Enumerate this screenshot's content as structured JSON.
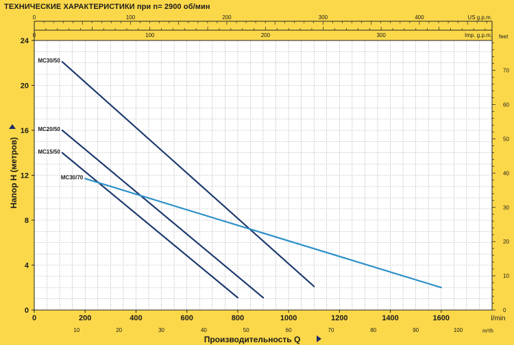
{
  "title": "ТЕХНИЧЕСКИЕ ХАРАКТЕРИСТИКИ при n= 2900 об/мин",
  "colors": {
    "background": "#fbd84a",
    "plot_background": "#ffffff",
    "grid": "#9a9a9a",
    "axis_text": "#1a1a1a",
    "arrow": "#1f2a6b"
  },
  "chart_data": {
    "type": "line",
    "title": "ТЕХНИЧЕСКИЕ ХАРАКТЕРИСТИКИ при n= 2900 об/мин",
    "xlabel": "Производительность Q",
    "ylabel": "Напор H  (метров)",
    "x_unit": "l/min",
    "xlim": [
      0,
      1800
    ],
    "ylim": [
      0,
      24
    ],
    "grid": true,
    "x_ticks": [
      0,
      200,
      400,
      600,
      800,
      1000,
      1200,
      1400,
      1600
    ],
    "y_ticks": [
      0,
      4,
      8,
      12,
      16,
      20,
      24
    ],
    "secondary_axes": {
      "m3h": {
        "unit": "m³/h",
        "factor": 16.6667,
        "ticks": [
          10,
          20,
          30,
          40,
          50,
          60,
          70,
          80,
          90,
          100
        ]
      },
      "us_gpm": {
        "unit": "US g.p.m.",
        "factor": 3.7854,
        "ticks": [
          0,
          100,
          200,
          300,
          400
        ]
      },
      "imp_gpm": {
        "unit": "Imp. g.p.m.",
        "factor": 4.5461,
        "ticks": [
          0,
          100,
          200,
          300
        ]
      },
      "feet": {
        "unit": "feet",
        "factor": 0.3048,
        "ticks": [
          0,
          10,
          20,
          30,
          40,
          50,
          60,
          70
        ]
      }
    },
    "series": [
      {
        "name": "MC30/50",
        "color": "#1d3a6e",
        "x": [
          110,
          1100
        ],
        "y": [
          22.1,
          2.1
        ]
      },
      {
        "name": "MC20/50",
        "color": "#1d3a6e",
        "x": [
          110,
          900
        ],
        "y": [
          16.0,
          1.1
        ]
      },
      {
        "name": "MC15/50",
        "color": "#1d3a6e",
        "x": [
          110,
          800
        ],
        "y": [
          14.0,
          1.1
        ]
      },
      {
        "name": "MC30/70",
        "color": "#2a8fc8",
        "x": [
          200,
          1600
        ],
        "y": [
          11.7,
          2.0
        ]
      }
    ]
  }
}
